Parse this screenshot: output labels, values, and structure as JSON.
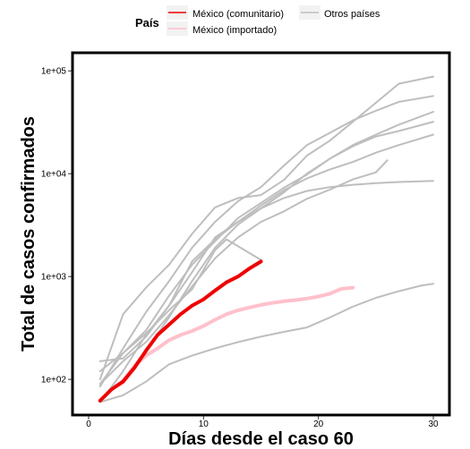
{
  "chart_data": {
    "type": "line",
    "xlabel": "Días desde el caso 60",
    "ylabel": "Total de casos confirmados",
    "x_scale": "linear",
    "y_scale": "log10",
    "xlim": [
      -1.4,
      31.4
    ],
    "ylim": [
      45,
      150000
    ],
    "x_ticks": [
      0,
      10,
      20,
      30
    ],
    "x_tick_labels": [
      "0",
      "10",
      "20",
      "30"
    ],
    "y_ticks": [
      100,
      1000,
      10000,
      100000
    ],
    "y_tick_labels": [
      "1e+02",
      "1e+03",
      "1e+04",
      "1e+05"
    ],
    "grid": false,
    "legend": {
      "title": "País",
      "placement": "top",
      "entries": [
        "México (comunitario)",
        "México (importado)",
        "Otros países"
      ]
    },
    "colors": {
      "mexico_comunitario": "#ee0000",
      "mexico_importado": "#ffc0cb",
      "otros_paises": "#bebebe"
    },
    "series": [
      {
        "group": "Otros países",
        "x": [
          1,
          3,
          5,
          7,
          9,
          11,
          13,
          15,
          17,
          19,
          21,
          23,
          25,
          27,
          30
        ],
        "y": [
          100,
          430,
          780,
          1300,
          2600,
          4700,
          5800,
          6200,
          8700,
          15000,
          21000,
          32000,
          49000,
          75000,
          88000
        ]
      },
      {
        "group": "Otros países",
        "x": [
          1,
          3,
          5,
          7,
          9,
          11,
          13,
          15,
          17,
          19,
          21,
          23,
          25,
          27,
          30
        ],
        "y": [
          85,
          200,
          450,
          900,
          1900,
          3400,
          5400,
          7400,
          12000,
          19000,
          25000,
          33000,
          41000,
          50000,
          57000
        ]
      },
      {
        "group": "Otros países",
        "x": [
          1,
          3,
          5,
          7,
          9,
          11,
          13,
          15,
          17,
          19,
          21,
          23,
          25,
          27,
          30
        ],
        "y": [
          60,
          100,
          190,
          400,
          900,
          1900,
          3200,
          4600,
          6600,
          10000,
          14000,
          19000,
          24000,
          30000,
          40000
        ]
      },
      {
        "group": "Otros países",
        "x": [
          1,
          3,
          5,
          7,
          9,
          11,
          13,
          15,
          17,
          19,
          21,
          23,
          25,
          27,
          30
        ],
        "y": [
          150,
          160,
          260,
          520,
          1100,
          2400,
          3400,
          4900,
          6900,
          9000,
          11000,
          13000,
          16000,
          19000,
          24000
        ]
      },
      {
        "group": "Otros países",
        "x": [
          1,
          3,
          5,
          7,
          9,
          11,
          13,
          15,
          17,
          19,
          21,
          23,
          25,
          26
        ],
        "y": [
          90,
          150,
          230,
          420,
          800,
          1500,
          2400,
          3400,
          4300,
          5700,
          7000,
          8800,
          10300,
          13500
        ]
      },
      {
        "group": "Otros países",
        "x": [
          1,
          3,
          5,
          7,
          9,
          11,
          13,
          15,
          17,
          19,
          21,
          23,
          25,
          27,
          30
        ],
        "y": [
          60,
          120,
          270,
          520,
          1400,
          2300,
          3400,
          4600,
          5800,
          6800,
          7400,
          7800,
          8100,
          8300,
          8500
        ]
      },
      {
        "group": "Otros países",
        "x": [
          1,
          3,
          5,
          7,
          9,
          11,
          13,
          15,
          17,
          19,
          21,
          23,
          25,
          27,
          30
        ],
        "y": [
          120,
          180,
          300,
          650,
          1300,
          2200,
          3700,
          5200,
          7300,
          9800,
          14000,
          18500,
          23000,
          26000,
          32000
        ]
      },
      {
        "group": "Otros países",
        "x": [
          1,
          3,
          5,
          7,
          9,
          11,
          12,
          15
        ],
        "y": [
          90,
          180,
          280,
          470,
          750,
          1800,
          2300,
          1450
        ]
      },
      {
        "group": "Otros países",
        "x": [
          1,
          3,
          5,
          7,
          9,
          11,
          13,
          15,
          17,
          19,
          21,
          23,
          25,
          27,
          29,
          30
        ],
        "y": [
          60,
          70,
          95,
          140,
          170,
          200,
          230,
          260,
          290,
          320,
          400,
          510,
          620,
          720,
          820,
          850
        ]
      },
      {
        "group": "México (importado)",
        "x": [
          1,
          2,
          3,
          4,
          5,
          6,
          7,
          8,
          9,
          10,
          11,
          12,
          13,
          14,
          15,
          16,
          17,
          18,
          19,
          20,
          21,
          22,
          23
        ],
        "y": [
          62,
          80,
          97,
          135,
          170,
          200,
          240,
          270,
          295,
          330,
          380,
          430,
          470,
          500,
          530,
          555,
          575,
          590,
          610,
          640,
          680,
          760,
          780
        ]
      },
      {
        "group": "México (comunitario)",
        "x": [
          1,
          2,
          3,
          4,
          5,
          6,
          7,
          8,
          9,
          10,
          11,
          12,
          13,
          14,
          15
        ],
        "y": [
          62,
          80,
          95,
          130,
          190,
          270,
          340,
          430,
          520,
          600,
          730,
          880,
          1000,
          1200,
          1400
        ]
      }
    ]
  }
}
